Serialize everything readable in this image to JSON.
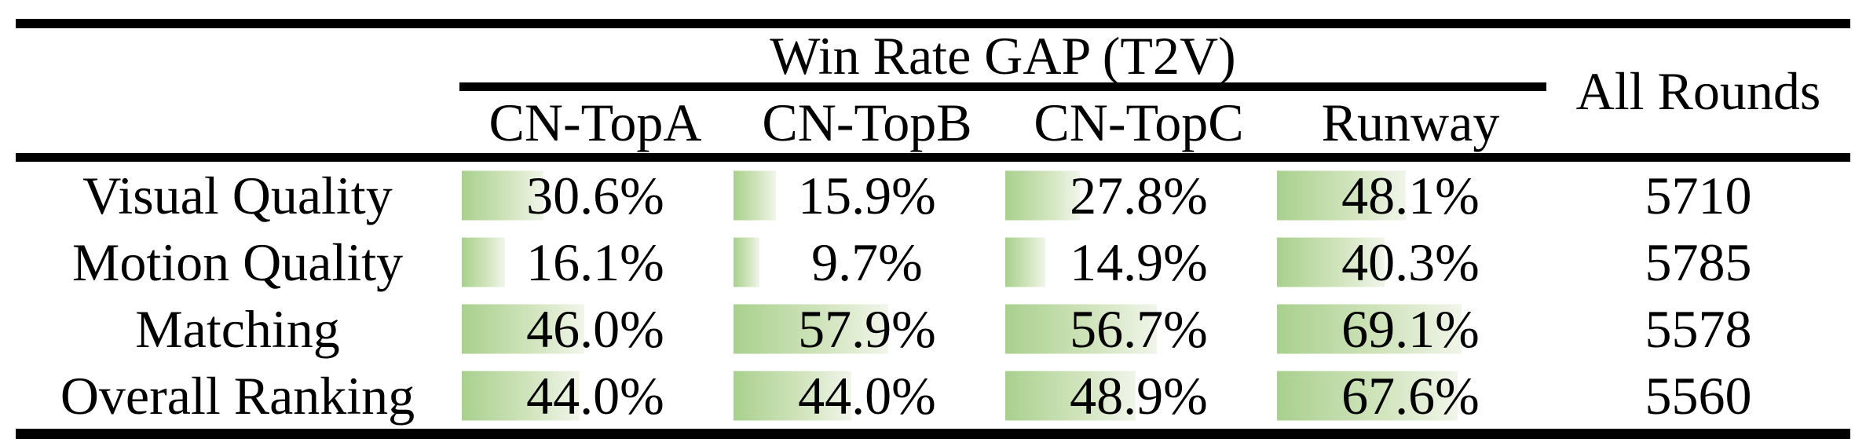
{
  "table": {
    "group_header": "Win Rate GAP (T2V)",
    "all_rounds_header": "All Rounds",
    "columns": [
      "CN-TopA",
      "CN-TopB",
      "CN-TopC",
      "Runway"
    ],
    "rows": [
      {
        "label": "Visual Quality",
        "cells": [
          {
            "text": "30.6%",
            "pct": 30.6
          },
          {
            "text": "15.9%",
            "pct": 15.9
          },
          {
            "text": "27.8%",
            "pct": 27.8
          },
          {
            "text": "48.1%",
            "pct": 48.1
          }
        ],
        "all_rounds": "5710"
      },
      {
        "label": "Motion Quality",
        "cells": [
          {
            "text": "16.1%",
            "pct": 16.1
          },
          {
            "text": "9.7%",
            "pct": 9.7
          },
          {
            "text": "14.9%",
            "pct": 14.9
          },
          {
            "text": "40.3%",
            "pct": 40.3
          }
        ],
        "all_rounds": "5785"
      },
      {
        "label": "Matching",
        "cells": [
          {
            "text": "46.0%",
            "pct": 46.0
          },
          {
            "text": "57.9%",
            "pct": 57.9
          },
          {
            "text": "56.7%",
            "pct": 56.7
          },
          {
            "text": "69.1%",
            "pct": 69.1
          }
        ],
        "all_rounds": "5578"
      },
      {
        "label": "Overall Ranking",
        "cells": [
          {
            "text": "44.0%",
            "pct": 44.0
          },
          {
            "text": "44.0%",
            "pct": 44.0
          },
          {
            "text": "48.9%",
            "pct": 48.9
          },
          {
            "text": "67.6%",
            "pct": 67.6
          }
        ],
        "all_rounds": "5560"
      }
    ],
    "bar_colors": {
      "start": "#a9d08e",
      "end": "#f1f5ea"
    }
  }
}
